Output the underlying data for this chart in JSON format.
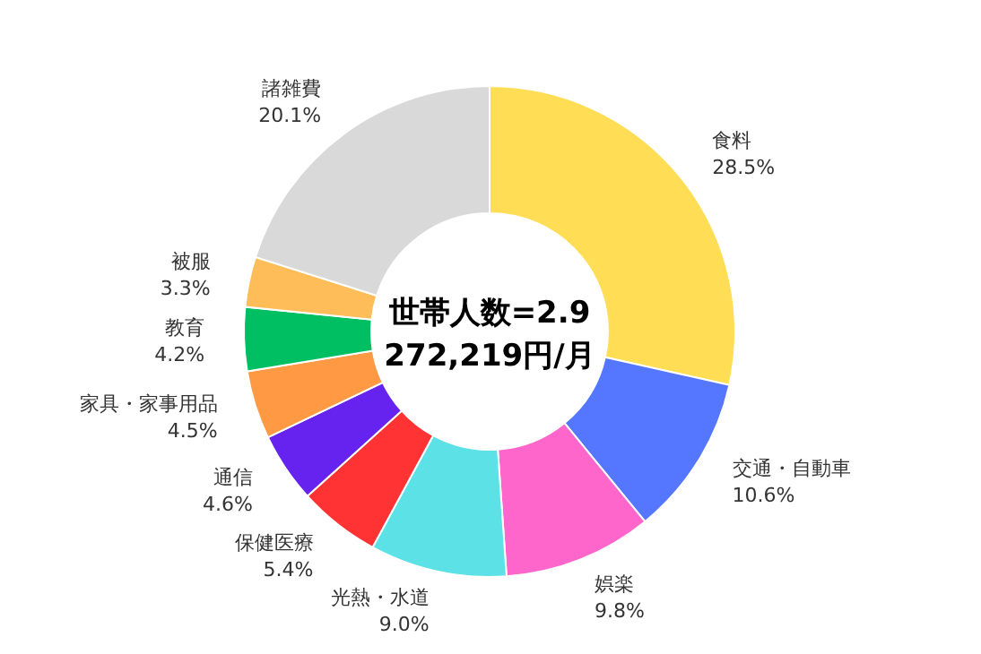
{
  "chart_data": {
    "type": "donut",
    "categories": [
      "食料",
      "交通・自動車",
      "娯楽",
      "光熱・水道",
      "保健医療",
      "通信",
      "家具・家事用品",
      "教育",
      "被服",
      "諸雑費"
    ],
    "values": [
      28.5,
      10.6,
      9.8,
      9.0,
      5.4,
      4.6,
      4.5,
      4.2,
      3.3,
      20.1
    ],
    "value_labels": [
      "28.5%",
      "10.6%",
      "9.8%",
      "9.0%",
      "5.4%",
      "4.6%",
      "4.5%",
      "4.2%",
      "3.3%",
      "20.1%"
    ],
    "colors": [
      "#ffdd55",
      "#5577ff",
      "#ff66cc",
      "#5ce1e6",
      "#ff3333",
      "#6622ee",
      "#ff9944",
      "#00bf63",
      "#ffbd59",
      "#d9d9d9"
    ],
    "annotations": [
      "世帯人数=2.9",
      "272,219円/月"
    ]
  }
}
